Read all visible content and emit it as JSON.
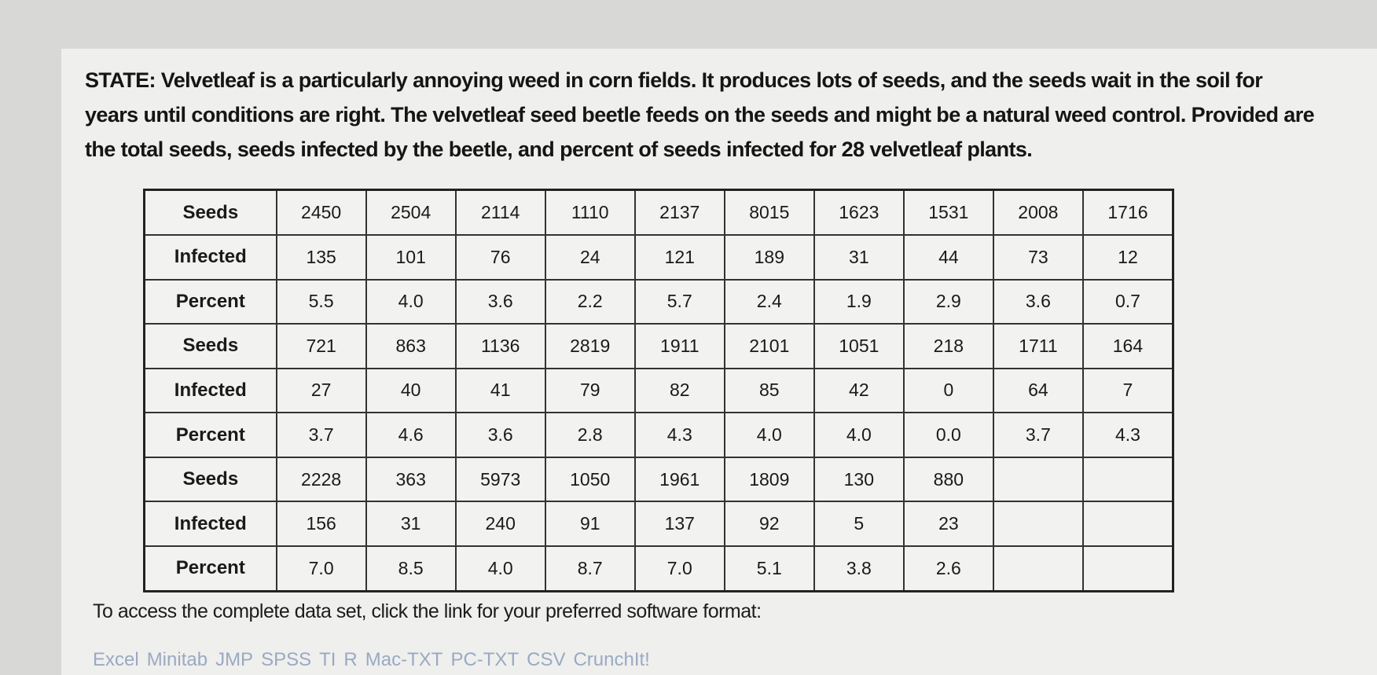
{
  "intro_text": "STATE: Velvetleaf is a particularly annoying weed in corn fields. It produces lots of seeds, and the seeds wait in the soil for years until conditions are right. The velvetleaf seed beetle feeds on the seeds and might be a natural weed control. Provided are the total seeds, seeds infected by the beetle, and percent of seeds infected for 28 velvetleaf plants.",
  "table": {
    "rows": [
      {
        "label": "Seeds",
        "cells": [
          "2450",
          "2504",
          "2114",
          "1110",
          "2137",
          "8015",
          "1623",
          "1531",
          "2008",
          "1716"
        ]
      },
      {
        "label": "Infected",
        "cells": [
          "135",
          "101",
          "76",
          "24",
          "121",
          "189",
          "31",
          "44",
          "73",
          "12"
        ]
      },
      {
        "label": "Percent",
        "cells": [
          "5.5",
          "4.0",
          "3.6",
          "2.2",
          "5.7",
          "2.4",
          "1.9",
          "2.9",
          "3.6",
          "0.7"
        ]
      },
      {
        "label": "Seeds",
        "cells": [
          "721",
          "863",
          "1136",
          "2819",
          "1911",
          "2101",
          "1051",
          "218",
          "1711",
          "164"
        ]
      },
      {
        "label": "Infected",
        "cells": [
          "27",
          "40",
          "41",
          "79",
          "82",
          "85",
          "42",
          "0",
          "64",
          "7"
        ]
      },
      {
        "label": "Percent",
        "cells": [
          "3.7",
          "4.6",
          "3.6",
          "2.8",
          "4.3",
          "4.0",
          "4.0",
          "0.0",
          "3.7",
          "4.3"
        ]
      },
      {
        "label": "Seeds",
        "cells": [
          "2228",
          "363",
          "5973",
          "1050",
          "1961",
          "1809",
          "130",
          "880",
          "",
          ""
        ]
      },
      {
        "label": "Infected",
        "cells": [
          "156",
          "31",
          "240",
          "91",
          "137",
          "92",
          "5",
          "23",
          "",
          ""
        ]
      },
      {
        "label": "Percent",
        "cells": [
          "7.0",
          "8.5",
          "4.0",
          "8.7",
          "7.0",
          "5.1",
          "3.8",
          "2.6",
          "",
          ""
        ]
      }
    ]
  },
  "access_text": "To access the complete data set, click the link for your preferred software format:",
  "links": [
    "Excel",
    "Minitab",
    "JMP",
    "SPSS",
    "TI",
    "R",
    "Mac-TXT",
    "PC-TXT",
    "CSV",
    "CrunchIt!"
  ]
}
